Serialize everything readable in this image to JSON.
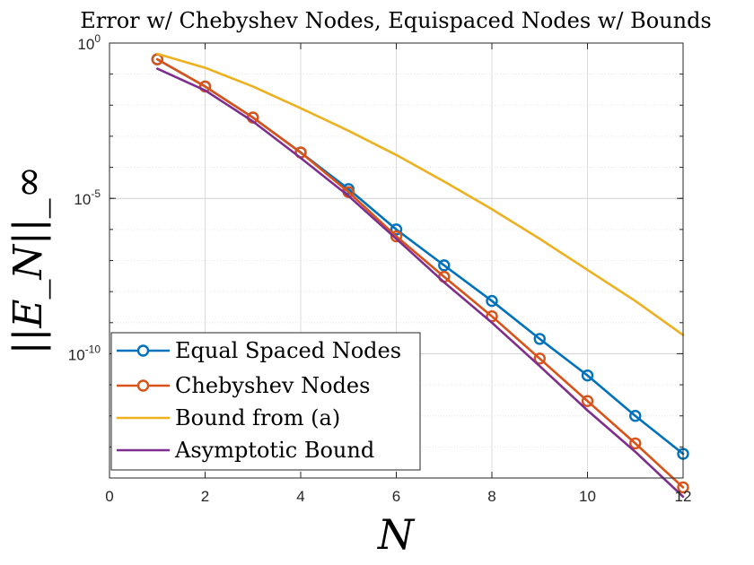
{
  "chart_data": {
    "type": "line",
    "title": "Error w/ Chebyshev Nodes, Equispaced Nodes w/ Bounds",
    "xlabel": "N",
    "ylabel": "||E_N||_∞",
    "x_scale": "linear",
    "y_scale": "log",
    "xlim": [
      0,
      12
    ],
    "ylim": [
      1e-14,
      1
    ],
    "x_ticks": [
      0,
      2,
      4,
      6,
      8,
      10,
      12
    ],
    "x_tick_labels": [
      "0",
      "2",
      "4",
      "6",
      "8",
      "10",
      "12"
    ],
    "y_major_ticks": [
      1e-10,
      1e-05,
      1
    ],
    "y_tick_labels": [
      {
        "value": 1,
        "base": "10",
        "exp": "0"
      },
      {
        "value": 1e-05,
        "base": "10",
        "exp": "-5"
      },
      {
        "value": 1e-10,
        "base": "10",
        "exp": "-10"
      }
    ],
    "grid": true,
    "legend_position": "bottom-left",
    "x": [
      1,
      2,
      3,
      4,
      5,
      6,
      7,
      8,
      9,
      10,
      11,
      12
    ],
    "series": [
      {
        "name": "Equal Spaced Nodes",
        "color": "#0072BD",
        "marker": "circle",
        "values": [
          0.3,
          0.04,
          0.004,
          0.0003,
          2e-05,
          1e-06,
          7e-08,
          5e-09,
          3e-10,
          2e-11,
          1e-12,
          6e-14
        ]
      },
      {
        "name": "Chebyshev Nodes",
        "color": "#D95319",
        "marker": "circle",
        "values": [
          0.3,
          0.04,
          0.004,
          0.0003,
          1.6e-05,
          6e-07,
          3e-08,
          1.6e-09,
          7e-11,
          3e-12,
          1.3e-13,
          5e-15
        ]
      },
      {
        "name": "Bound from (a)",
        "color": "#EDB120",
        "marker": "none",
        "values": [
          0.45,
          0.16,
          0.04,
          0.008,
          0.0015,
          0.00025,
          3.5e-05,
          4.5e-06,
          5e-07,
          5e-08,
          5e-09,
          4e-10
        ]
      },
      {
        "name": "Asymptotic Bound",
        "color": "#7E2F8E",
        "marker": "none",
        "values": [
          0.15,
          0.03,
          0.003,
          0.0002,
          1.2e-05,
          5e-07,
          2e-08,
          1e-09,
          4e-11,
          1.5e-12,
          7e-14,
          2.5e-15
        ]
      }
    ]
  }
}
